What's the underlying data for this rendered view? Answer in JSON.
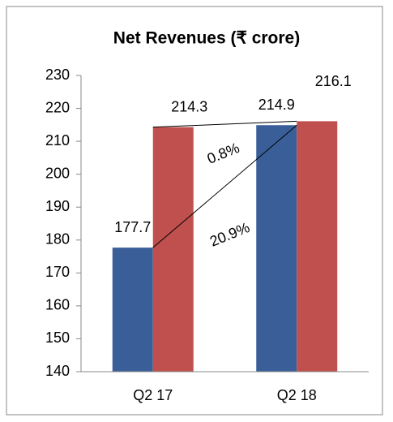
{
  "chart_data": {
    "type": "bar",
    "title": "Net Revenues (₹ crore)",
    "categories": [
      "Q2 17",
      "Q2 18"
    ],
    "series": [
      {
        "color": "#3a5f98",
        "values": [
          177.7,
          214.9
        ]
      },
      {
        "color": "#c0504d",
        "values": [
          214.3,
          216.1
        ]
      }
    ],
    "ylim": [
      140,
      230
    ],
    "yticks": [
      140,
      150,
      160,
      170,
      180,
      190,
      200,
      210,
      220,
      230
    ],
    "annotations": [
      {
        "text": "0.8%"
      },
      {
        "text": "20.9%"
      }
    ]
  }
}
